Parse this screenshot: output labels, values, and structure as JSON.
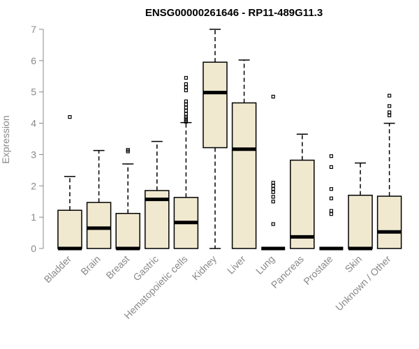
{
  "chart_data": {
    "type": "boxplot",
    "title": "ENSG00000261646 - RP11-489G11.3",
    "ylabel": "Expression",
    "xlabel": "",
    "ylim": [
      0,
      7
    ],
    "yticks": [
      0,
      1,
      2,
      3,
      4,
      5,
      6,
      7
    ],
    "box_color": "#f0e9d0",
    "categories": [
      "Bladder",
      "Brain",
      "Breast",
      "Gastric",
      "Hematopoietic cells",
      "Kidney",
      "Liver",
      "Lung",
      "Pancreas",
      "Prostate",
      "Skin",
      "Unknown / Other"
    ],
    "boxes": [
      {
        "name": "Bladder",
        "min": 0,
        "q1": 0,
        "median": 0,
        "q3": 1.22,
        "max": 2.3,
        "outliers": [
          4.2
        ]
      },
      {
        "name": "Brain",
        "min": 0,
        "q1": 0,
        "median": 0.65,
        "q3": 1.47,
        "max": 3.13,
        "outliers": []
      },
      {
        "name": "Breast",
        "min": 0,
        "q1": 0,
        "median": 0,
        "q3": 1.12,
        "max": 2.7,
        "outliers": [
          3.1,
          3.15
        ]
      },
      {
        "name": "Gastric",
        "min": 0,
        "q1": 0,
        "median": 1.57,
        "q3": 1.85,
        "max": 3.42,
        "outliers": []
      },
      {
        "name": "Hematopoietic cells",
        "min": 0,
        "q1": 0,
        "median": 0.83,
        "q3": 1.63,
        "max": 4.02,
        "outliers": [
          4.05,
          4.1,
          4.15,
          4.2,
          4.3,
          4.4,
          4.5,
          4.6,
          4.7,
          5.05,
          5.15,
          5.25,
          5.45
        ]
      },
      {
        "name": "Kidney",
        "min": 0,
        "q1": 3.22,
        "median": 4.98,
        "q3": 5.95,
        "max": 7.0,
        "outliers": []
      },
      {
        "name": "Liver",
        "min": 0,
        "q1": 0,
        "median": 3.17,
        "q3": 4.65,
        "max": 6.02,
        "outliers": []
      },
      {
        "name": "Lung",
        "min": 0,
        "q1": 0,
        "median": 0,
        "q3": 0,
        "max": 0,
        "outliers": [
          0.78,
          1.5,
          1.65,
          1.8,
          1.9,
          2.0,
          2.1,
          4.85
        ]
      },
      {
        "name": "Pancreas",
        "min": 0,
        "q1": 0,
        "median": 0.37,
        "q3": 2.82,
        "max": 3.65,
        "outliers": []
      },
      {
        "name": "Prostate",
        "min": 0,
        "q1": 0,
        "median": 0,
        "q3": 0,
        "max": 0,
        "outliers": [
          1.1,
          1.2,
          1.6,
          1.9,
          2.6,
          2.95
        ]
      },
      {
        "name": "Skin",
        "min": 0,
        "q1": 0,
        "median": 0,
        "q3": 1.7,
        "max": 2.73,
        "outliers": []
      },
      {
        "name": "Unknown / Other",
        "min": 0,
        "q1": 0,
        "median": 0.53,
        "q3": 1.67,
        "max": 4.0,
        "outliers": [
          4.25,
          4.35,
          4.55,
          4.88
        ]
      }
    ]
  }
}
